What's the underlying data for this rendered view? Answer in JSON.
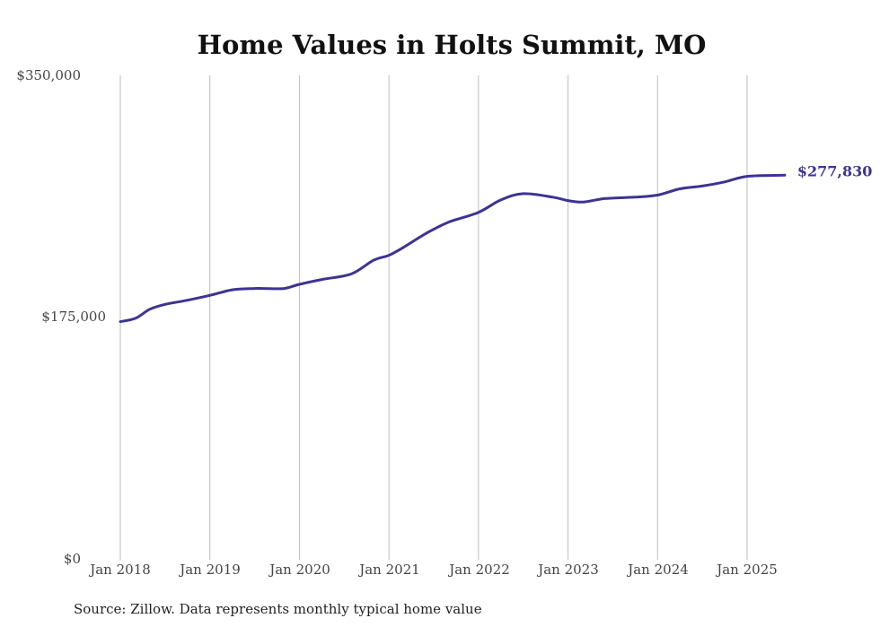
{
  "chart_data": {
    "type": "line",
    "title": "Home Values in Holts Summit, MO",
    "source": "Source: Zillow. Data represents monthly typical home value",
    "ylim": [
      0,
      350000
    ],
    "y_ticks": [
      {
        "value": 0,
        "label": "$0"
      },
      {
        "value": 175000,
        "label": "$175,000"
      },
      {
        "value": 350000,
        "label": "$350,000"
      }
    ],
    "x_ticks": [
      {
        "value": 2018.0,
        "label": "Jan 2018"
      },
      {
        "value": 2019.0,
        "label": "Jan 2019"
      },
      {
        "value": 2020.0,
        "label": "Jan 2020"
      },
      {
        "value": 2021.0,
        "label": "Jan 2021"
      },
      {
        "value": 2022.0,
        "label": "Jan 2022"
      },
      {
        "value": 2023.0,
        "label": "Jan 2023"
      },
      {
        "value": 2024.0,
        "label": "Jan 2024"
      },
      {
        "value": 2025.0,
        "label": "Jan 2025"
      }
    ],
    "xlim": [
      2018.0,
      2025.42
    ],
    "grid": "vertical",
    "line_color": "#3b3494",
    "end_label": "$277,830",
    "series": [
      {
        "x": [
          2018.0,
          2018.17,
          2018.33,
          2018.5,
          2018.75,
          2019.0,
          2019.25,
          2019.5,
          2019.6,
          2019.83,
          2020.0,
          2020.25,
          2020.58,
          2020.83,
          2021.0,
          2021.17,
          2021.42,
          2021.67,
          2022.0,
          2022.25,
          2022.5,
          2022.83,
          2023.0,
          2023.17,
          2023.42,
          2023.75,
          2024.0,
          2024.25,
          2024.5,
          2024.75,
          2025.0,
          2025.42
        ],
        "y": [
          172000,
          174500,
          181000,
          184500,
          187500,
          191000,
          195000,
          196000,
          196000,
          196000,
          199000,
          202500,
          206500,
          216500,
          220000,
          226000,
          236000,
          244000,
          251000,
          260000,
          264500,
          262000,
          259500,
          258500,
          261000,
          262000,
          263500,
          268000,
          270000,
          273000,
          277000,
          277830
        ]
      }
    ]
  }
}
